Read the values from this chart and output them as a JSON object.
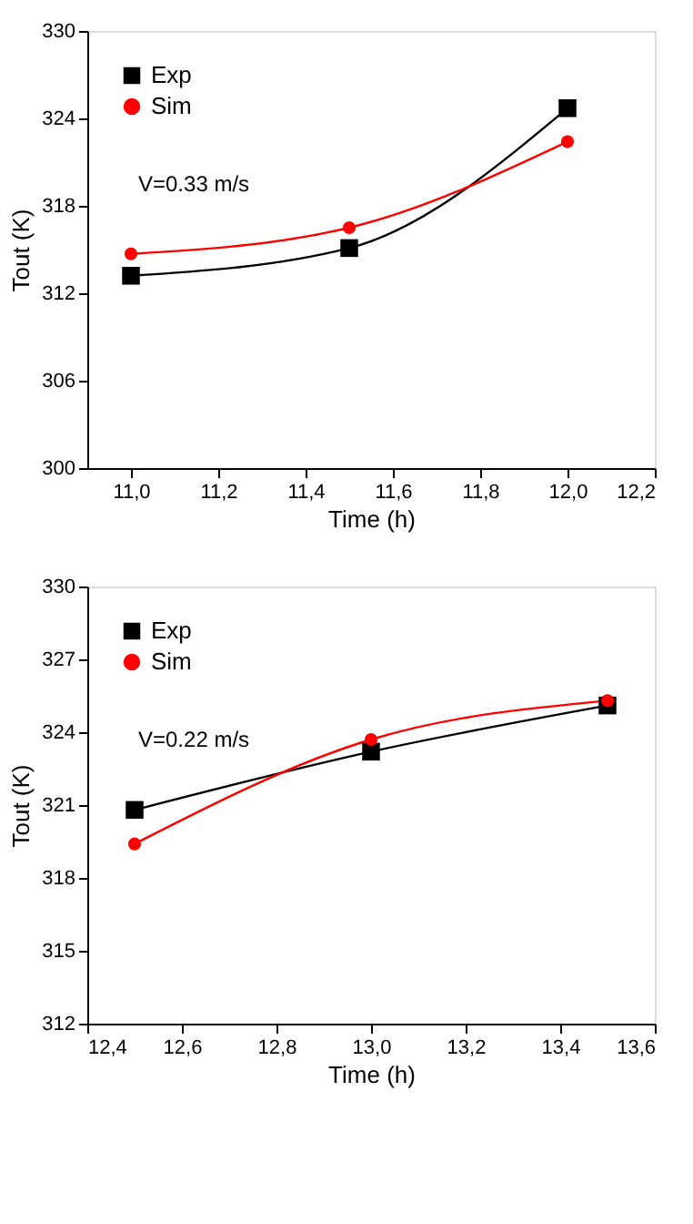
{
  "chart_data": [
    {
      "type": "line",
      "xlabel": "Time (h)",
      "ylabel": "Tout (K)",
      "annotations": [
        "V=0.33 m/s"
      ],
      "legend": "top left",
      "grid": false,
      "line_style": "solid",
      "x": [
        11.0,
        11.5,
        12.0
      ],
      "xlim": [
        10.9,
        12.2
      ],
      "xticks": [
        {
          "value": 11.0,
          "label": "11,0"
        },
        {
          "value": 11.2,
          "label": "11,2"
        },
        {
          "value": 11.4,
          "label": "11,4"
        },
        {
          "value": 11.6,
          "label": "11,6"
        },
        {
          "value": 11.8,
          "label": "11,8"
        },
        {
          "value": 12.0,
          "label": "12,0"
        },
        {
          "value": 12.2,
          "label": "12,2"
        }
      ],
      "ylim": [
        300,
        330
      ],
      "yticks": [
        300,
        306,
        312,
        318,
        324,
        330
      ],
      "series": [
        {
          "name": "Exp",
          "color": "#000000",
          "marker": "square",
          "values": [
            313.2,
            315.1,
            324.7
          ]
        },
        {
          "name": "Sim",
          "color": "#ff0000",
          "marker": "circle",
          "values": [
            314.7,
            316.5,
            322.4
          ]
        }
      ]
    },
    {
      "type": "line",
      "xlabel": "Time (h)",
      "ylabel": "Tout (K)",
      "annotations": [
        "V=0.22 m/s"
      ],
      "legend": "top left",
      "grid": false,
      "line_style": "solid",
      "x": [
        12.5,
        13.0,
        13.5
      ],
      "xlim": [
        12.4,
        13.6
      ],
      "xticks": [
        {
          "value": 12.4,
          "label": "12,4"
        },
        {
          "value": 12.6,
          "label": "12,6"
        },
        {
          "value": 12.8,
          "label": "12,8"
        },
        {
          "value": 13.0,
          "label": "13,0"
        },
        {
          "value": 13.2,
          "label": "13,2"
        },
        {
          "value": 13.4,
          "label": "13,4"
        },
        {
          "value": 13.6,
          "label": "13,6"
        }
      ],
      "ylim": [
        312,
        330
      ],
      "yticks": [
        312,
        315,
        318,
        321,
        324,
        327,
        330
      ],
      "series": [
        {
          "name": "Exp",
          "color": "#000000",
          "marker": "square",
          "values": [
            320.8,
            323.2,
            325.1
          ]
        },
        {
          "name": "Sim",
          "color": "#ff0000",
          "marker": "circle",
          "values": [
            319.4,
            323.7,
            325.3
          ]
        }
      ]
    }
  ]
}
